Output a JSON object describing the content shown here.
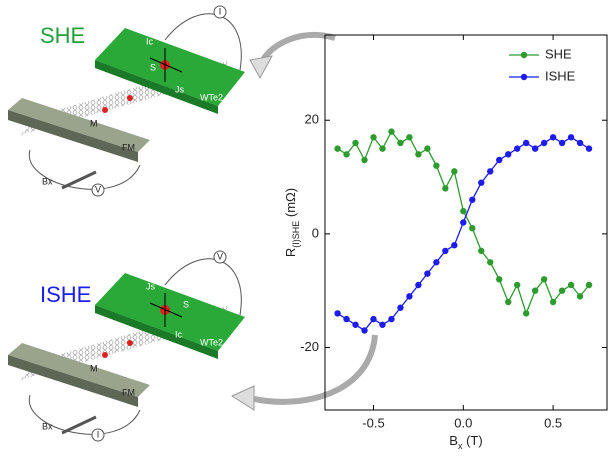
{
  "chart_data": {
    "type": "line",
    "ylabel": [
      "R",
      "(I)SHE",
      " (mΩ)"
    ],
    "xlabel": [
      "B",
      "x",
      " (T)"
    ],
    "x": [
      -0.7,
      -0.65,
      -0.6,
      -0.55,
      -0.5,
      -0.45,
      -0.4,
      -0.35,
      -0.3,
      -0.25,
      -0.2,
      -0.15,
      -0.1,
      -0.05,
      0,
      0.05,
      0.1,
      0.15,
      0.2,
      0.25,
      0.3,
      0.35,
      0.4,
      0.45,
      0.5,
      0.55,
      0.6,
      0.65,
      0.7
    ],
    "series": [
      {
        "name": "SHE",
        "color": "#2e9b2e",
        "values": [
          15,
          14,
          16,
          13,
          17,
          15,
          18,
          16,
          17,
          14,
          15,
          12,
          8,
          11,
          4,
          1,
          -3,
          -5,
          -8,
          -12,
          -9,
          -14,
          -10,
          -8,
          -12,
          -10,
          -9,
          -11,
          -9
        ]
      },
      {
        "name": "ISHE",
        "color": "#1c1cee",
        "values": [
          -14,
          -15,
          -16,
          -17,
          -15,
          -16,
          -15,
          -13,
          -11,
          -9,
          -7,
          -5,
          -3,
          -2,
          2,
          6,
          9,
          11,
          13,
          14,
          15,
          16,
          15,
          16,
          17,
          16,
          17,
          16,
          15
        ]
      }
    ],
    "xlim": [
      -0.77,
      0.8
    ],
    "xticks": [
      -0.5,
      {
        "value": 0,
        "label": "0.0"
      },
      0.5
    ],
    "ylim": [
      -31,
      35
    ],
    "yticks": [
      -20,
      0,
      20
    ],
    "legend": "upper right"
  },
  "diagrams": [
    {
      "title": "SHE",
      "slab": "WTe2",
      "bar": "FM",
      "field": "Bx",
      "magnet": "M",
      "charge": "Ic",
      "spin_current": "Js",
      "spin": "S",
      "source": "I",
      "meter": "V"
    },
    {
      "title": "ISHE",
      "slab": "WTe2",
      "bar": "FM",
      "field": "Bx",
      "magnet": "M",
      "charge": "Ic",
      "spin_current": "Js",
      "spin": "S",
      "source": "I",
      "meter": "V"
    }
  ]
}
